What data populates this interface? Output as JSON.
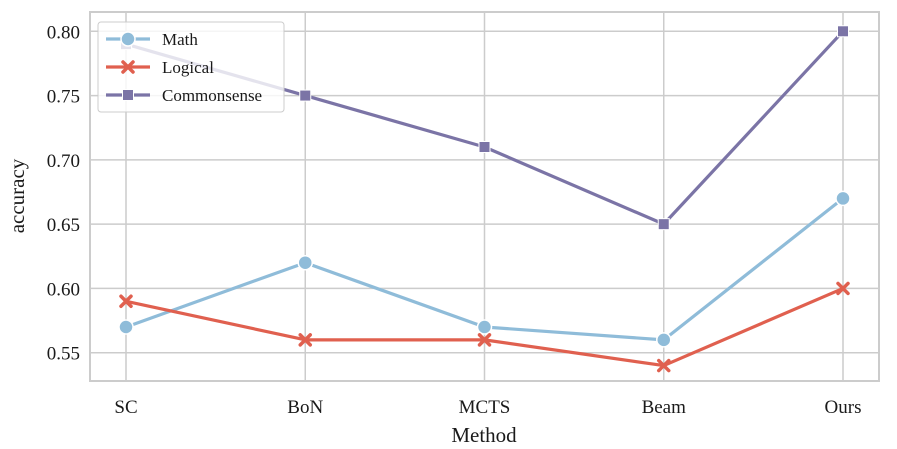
{
  "chart_data": {
    "type": "line",
    "title": "",
    "xlabel": "Method",
    "ylabel": "accuracy",
    "categories": [
      "SC",
      "BoN",
      "MCTS",
      "Beam",
      "Ours"
    ],
    "ylim": [
      0.528,
      0.815
    ],
    "yticks": [
      0.55,
      0.6,
      0.65,
      0.7,
      0.75,
      0.8
    ],
    "ytick_labels": [
      "0.55",
      "0.60",
      "0.65",
      "0.70",
      "0.75",
      "0.80"
    ],
    "grid": true,
    "legend_position": "top-left",
    "series": [
      {
        "name": "Math",
        "color": "#8fbcd9",
        "marker": "circle",
        "values": [
          0.57,
          0.62,
          0.57,
          0.56,
          0.67
        ]
      },
      {
        "name": "Logical",
        "color": "#e0604f",
        "marker": "x",
        "values": [
          0.59,
          0.56,
          0.56,
          0.54,
          0.6
        ]
      },
      {
        "name": "Commonsense",
        "color": "#7b74a6",
        "marker": "square",
        "values": [
          0.79,
          0.75,
          0.71,
          0.65,
          0.8
        ]
      }
    ]
  }
}
